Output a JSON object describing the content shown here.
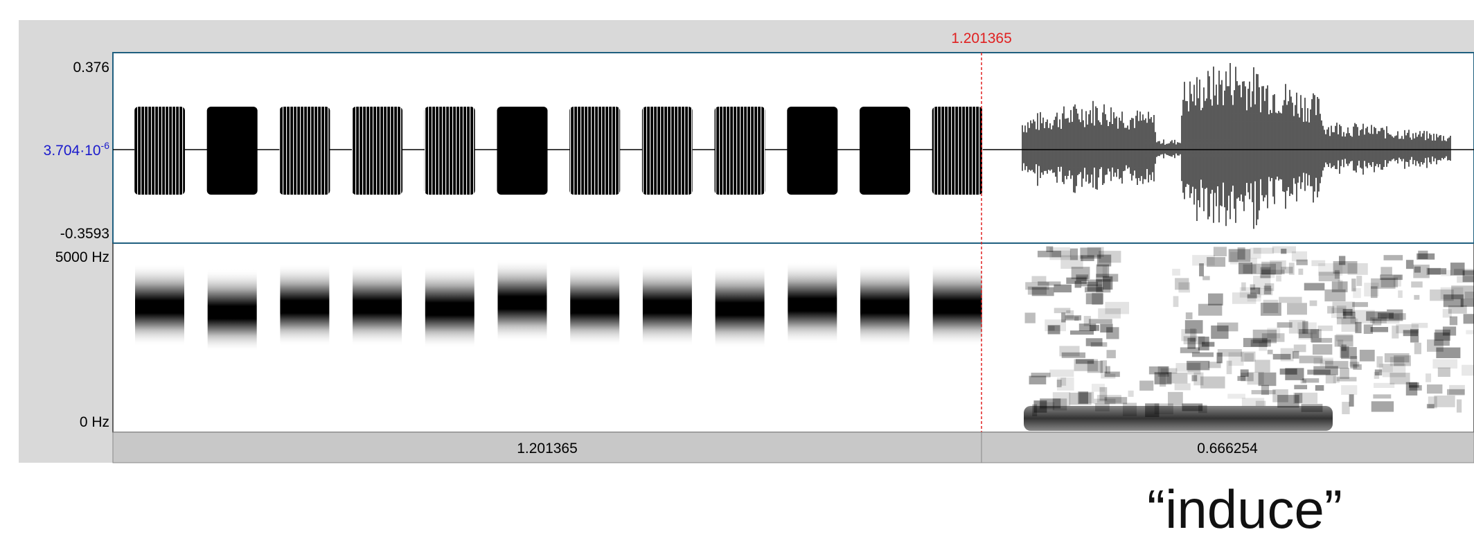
{
  "cursor_time": "1.201365",
  "waveform_axis": {
    "top": "0.376",
    "middle": {
      "mantissa": "3.704·10",
      "exponent": "-6"
    },
    "bottom": "-0.3593"
  },
  "spectrogram_axis": {
    "top": "5000 Hz",
    "bottom": "0 Hz"
  },
  "durations": [
    "1.201365",
    "0.666254"
  ],
  "caption": "“induce”"
}
